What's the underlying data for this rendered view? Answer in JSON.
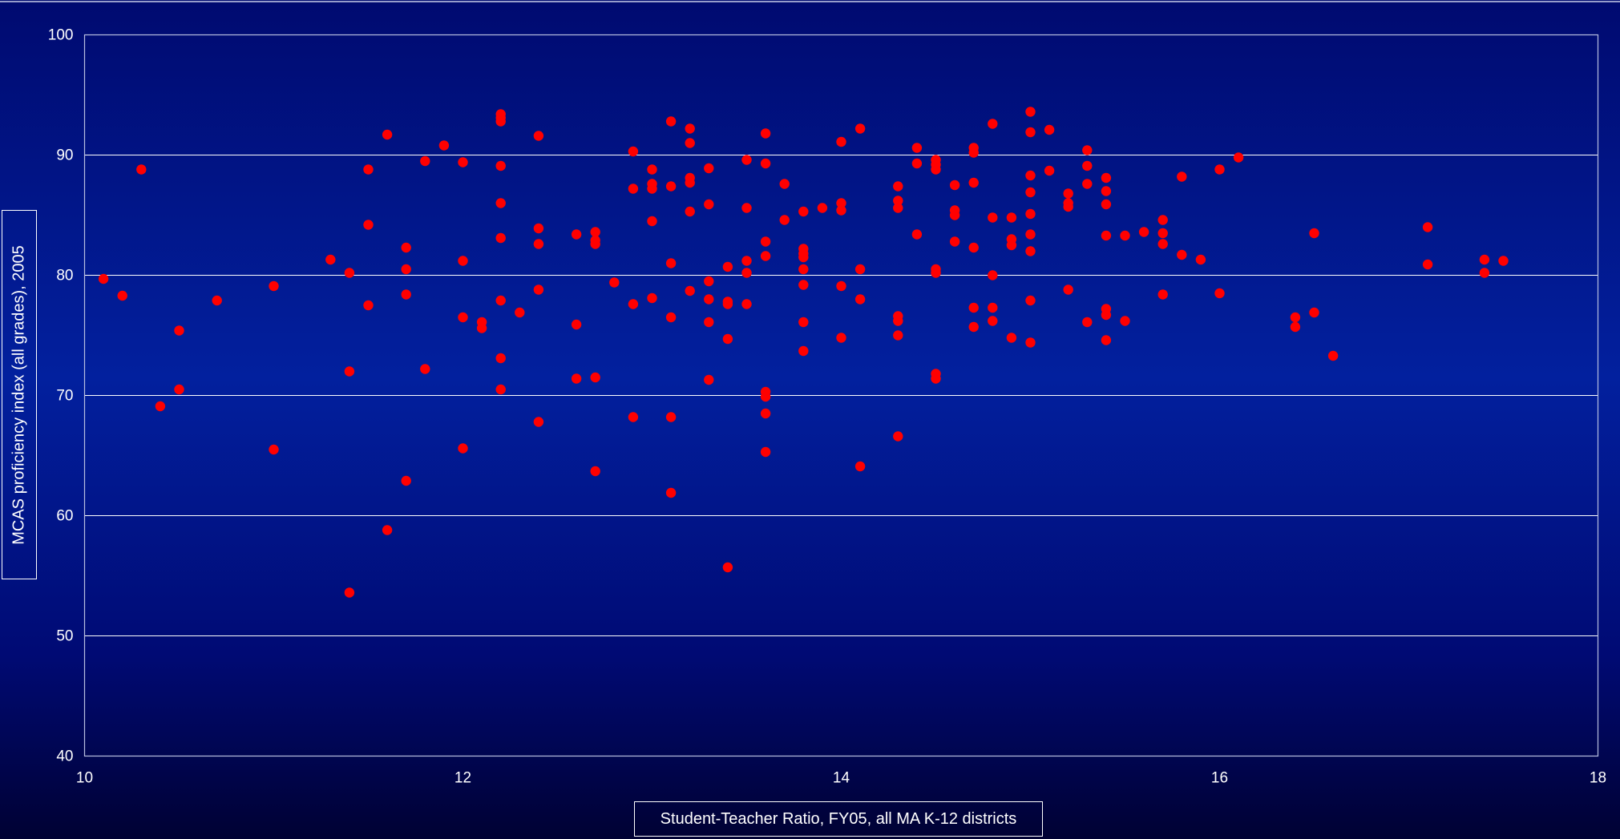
{
  "chart_data": {
    "type": "scatter",
    "xlabel": "Student-Teacher Ratio, FY05, all MA K-12 districts",
    "ylabel": "MCAS proficiency index (all grades), 2005",
    "xlim": [
      10,
      18
    ],
    "ylim": [
      40,
      100
    ],
    "x_ticks": [
      "10",
      "12",
      "14",
      "16",
      "18"
    ],
    "y_ticks": [
      "40",
      "50",
      "60",
      "70",
      "80",
      "90",
      "100"
    ],
    "grid": "horizontal",
    "colors": {
      "marker": "#ff0000",
      "grid": "#ffffff",
      "text": "#ffffff"
    },
    "points": [
      [
        10.1,
        79.7
      ],
      [
        10.2,
        78.3
      ],
      [
        10.3,
        88.8
      ],
      [
        10.4,
        69.1
      ],
      [
        10.5,
        75.4
      ],
      [
        10.5,
        70.5
      ],
      [
        10.7,
        77.9
      ],
      [
        11.0,
        79.1
      ],
      [
        11.0,
        65.5
      ],
      [
        11.3,
        81.3
      ],
      [
        11.4,
        80.2
      ],
      [
        11.4,
        72.0
      ],
      [
        11.4,
        53.6
      ],
      [
        11.5,
        88.8
      ],
      [
        11.5,
        84.2
      ],
      [
        11.5,
        77.5
      ],
      [
        11.6,
        91.7
      ],
      [
        11.6,
        58.8
      ],
      [
        11.7,
        82.3
      ],
      [
        11.7,
        80.5
      ],
      [
        11.7,
        78.4
      ],
      [
        11.7,
        62.9
      ],
      [
        11.8,
        89.5
      ],
      [
        11.8,
        72.2
      ],
      [
        11.9,
        90.8
      ],
      [
        12.0,
        89.4
      ],
      [
        12.0,
        81.2
      ],
      [
        12.0,
        76.5
      ],
      [
        12.0,
        65.6
      ],
      [
        12.1,
        76.1
      ],
      [
        12.1,
        75.6
      ],
      [
        12.2,
        93.4
      ],
      [
        12.2,
        93.1
      ],
      [
        12.2,
        92.8
      ],
      [
        12.2,
        89.1
      ],
      [
        12.2,
        86.0
      ],
      [
        12.2,
        83.1
      ],
      [
        12.2,
        77.9
      ],
      [
        12.2,
        73.1
      ],
      [
        12.2,
        70.5
      ],
      [
        12.3,
        76.9
      ],
      [
        12.4,
        91.6
      ],
      [
        12.4,
        83.9
      ],
      [
        12.4,
        82.6
      ],
      [
        12.4,
        78.8
      ],
      [
        12.4,
        67.8
      ],
      [
        12.6,
        83.4
      ],
      [
        12.6,
        75.9
      ],
      [
        12.6,
        71.4
      ],
      [
        12.7,
        83.6
      ],
      [
        12.7,
        82.9
      ],
      [
        12.7,
        82.6
      ],
      [
        12.7,
        71.5
      ],
      [
        12.7,
        63.7
      ],
      [
        12.8,
        79.4
      ],
      [
        12.9,
        90.3
      ],
      [
        12.9,
        87.2
      ],
      [
        12.9,
        77.6
      ],
      [
        12.9,
        68.2
      ],
      [
        13.0,
        88.8
      ],
      [
        13.0,
        87.6
      ],
      [
        13.0,
        87.2
      ],
      [
        13.0,
        84.5
      ],
      [
        13.0,
        78.1
      ],
      [
        13.1,
        92.8
      ],
      [
        13.1,
        87.4
      ],
      [
        13.1,
        81.0
      ],
      [
        13.1,
        76.5
      ],
      [
        13.1,
        68.2
      ],
      [
        13.1,
        61.9
      ],
      [
        13.2,
        92.2
      ],
      [
        13.2,
        91.0
      ],
      [
        13.2,
        88.1
      ],
      [
        13.2,
        87.7
      ],
      [
        13.2,
        85.3
      ],
      [
        13.2,
        78.7
      ],
      [
        13.3,
        88.9
      ],
      [
        13.3,
        85.9
      ],
      [
        13.3,
        79.5
      ],
      [
        13.3,
        78.0
      ],
      [
        13.3,
        76.1
      ],
      [
        13.3,
        71.3
      ],
      [
        13.4,
        80.7
      ],
      [
        13.4,
        77.8
      ],
      [
        13.4,
        77.6
      ],
      [
        13.4,
        74.7
      ],
      [
        13.4,
        55.7
      ],
      [
        13.5,
        89.6
      ],
      [
        13.5,
        85.6
      ],
      [
        13.5,
        81.2
      ],
      [
        13.5,
        80.2
      ],
      [
        13.5,
        77.6
      ],
      [
        13.6,
        91.8
      ],
      [
        13.6,
        89.3
      ],
      [
        13.6,
        82.8
      ],
      [
        13.6,
        81.6
      ],
      [
        13.6,
        70.3
      ],
      [
        13.6,
        69.9
      ],
      [
        13.6,
        68.5
      ],
      [
        13.6,
        65.3
      ],
      [
        13.7,
        87.6
      ],
      [
        13.7,
        84.6
      ],
      [
        13.8,
        85.3
      ],
      [
        13.8,
        82.2
      ],
      [
        13.8,
        81.8
      ],
      [
        13.8,
        81.5
      ],
      [
        13.8,
        80.5
      ],
      [
        13.8,
        79.2
      ],
      [
        13.8,
        76.1
      ],
      [
        13.8,
        73.7
      ],
      [
        13.9,
        85.6
      ],
      [
        14.0,
        91.1
      ],
      [
        14.0,
        86.0
      ],
      [
        14.0,
        85.4
      ],
      [
        14.0,
        79.1
      ],
      [
        14.0,
        74.8
      ],
      [
        14.1,
        92.2
      ],
      [
        14.1,
        80.5
      ],
      [
        14.1,
        78.0
      ],
      [
        14.1,
        64.1
      ],
      [
        14.3,
        87.4
      ],
      [
        14.3,
        86.2
      ],
      [
        14.3,
        85.6
      ],
      [
        14.3,
        76.6
      ],
      [
        14.3,
        76.2
      ],
      [
        14.3,
        75.0
      ],
      [
        14.3,
        66.6
      ],
      [
        14.4,
        90.6
      ],
      [
        14.4,
        89.3
      ],
      [
        14.4,
        83.4
      ],
      [
        14.5,
        89.6
      ],
      [
        14.5,
        89.2
      ],
      [
        14.5,
        88.8
      ],
      [
        14.5,
        80.5
      ],
      [
        14.5,
        80.2
      ],
      [
        14.5,
        71.8
      ],
      [
        14.5,
        71.4
      ],
      [
        14.6,
        87.5
      ],
      [
        14.6,
        85.4
      ],
      [
        14.6,
        85.0
      ],
      [
        14.6,
        82.8
      ],
      [
        14.7,
        90.6
      ],
      [
        14.7,
        90.2
      ],
      [
        14.7,
        87.7
      ],
      [
        14.7,
        82.3
      ],
      [
        14.7,
        77.3
      ],
      [
        14.7,
        75.7
      ],
      [
        14.8,
        92.6
      ],
      [
        14.8,
        84.8
      ],
      [
        14.8,
        80.0
      ],
      [
        14.8,
        77.3
      ],
      [
        14.8,
        76.2
      ],
      [
        14.9,
        84.8
      ],
      [
        14.9,
        83.0
      ],
      [
        14.9,
        82.5
      ],
      [
        14.9,
        74.8
      ],
      [
        15.0,
        93.6
      ],
      [
        15.0,
        91.9
      ],
      [
        15.0,
        88.3
      ],
      [
        15.0,
        86.9
      ],
      [
        15.0,
        85.1
      ],
      [
        15.0,
        83.4
      ],
      [
        15.0,
        82.0
      ],
      [
        15.0,
        77.9
      ],
      [
        15.0,
        74.4
      ],
      [
        15.1,
        92.1
      ],
      [
        15.1,
        88.7
      ],
      [
        15.2,
        86.8
      ],
      [
        15.2,
        86.0
      ],
      [
        15.2,
        85.7
      ],
      [
        15.2,
        78.8
      ],
      [
        15.3,
        90.4
      ],
      [
        15.3,
        89.1
      ],
      [
        15.3,
        87.6
      ],
      [
        15.3,
        76.1
      ],
      [
        15.4,
        88.1
      ],
      [
        15.4,
        87.0
      ],
      [
        15.4,
        85.9
      ],
      [
        15.4,
        83.3
      ],
      [
        15.4,
        77.2
      ],
      [
        15.4,
        76.7
      ],
      [
        15.4,
        74.6
      ],
      [
        15.5,
        83.3
      ],
      [
        15.5,
        76.2
      ],
      [
        15.6,
        83.6
      ],
      [
        15.7,
        84.6
      ],
      [
        15.7,
        83.5
      ],
      [
        15.7,
        82.6
      ],
      [
        15.7,
        78.4
      ],
      [
        15.8,
        88.2
      ],
      [
        15.8,
        81.7
      ],
      [
        15.9,
        81.3
      ],
      [
        16.0,
        88.8
      ],
      [
        16.0,
        78.5
      ],
      [
        16.1,
        89.8
      ],
      [
        16.4,
        76.5
      ],
      [
        16.4,
        75.7
      ],
      [
        16.5,
        83.5
      ],
      [
        16.5,
        76.9
      ],
      [
        16.6,
        73.3
      ],
      [
        17.1,
        84.0
      ],
      [
        17.1,
        80.9
      ],
      [
        17.4,
        81.3
      ],
      [
        17.4,
        80.2
      ],
      [
        17.5,
        81.2
      ]
    ]
  }
}
